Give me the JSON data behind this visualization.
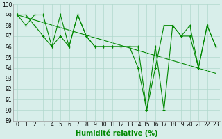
{
  "xlabel": "Humidité relative (%)",
  "x": [
    0,
    1,
    2,
    3,
    4,
    5,
    6,
    7,
    8,
    9,
    10,
    11,
    12,
    13,
    14,
    15,
    16,
    17,
    18,
    19,
    20,
    21,
    22,
    23
  ],
  "line1": [
    99,
    98,
    99,
    99,
    96,
    99,
    96,
    99,
    97,
    96,
    96,
    96,
    96,
    96,
    96,
    90,
    94,
    98,
    98,
    97,
    97,
    94,
    98,
    96
  ],
  "line2": [
    99,
    99,
    98,
    97,
    96,
    97,
    96,
    99,
    97,
    96,
    96,
    96,
    96,
    96,
    94,
    90,
    96,
    90,
    98,
    97,
    98,
    94,
    98,
    96
  ],
  "trend": [
    99,
    98.76,
    98.52,
    98.28,
    98.04,
    97.8,
    97.56,
    97.32,
    97.08,
    96.84,
    96.6,
    96.36,
    96.12,
    95.88,
    95.64,
    95.4,
    95.16,
    94.92,
    94.68,
    94.44,
    94.2,
    93.96,
    93.72,
    93.48
  ],
  "ylim": [
    89,
    100
  ],
  "yticks": [
    89,
    90,
    91,
    92,
    93,
    94,
    95,
    96,
    97,
    98,
    99,
    100
  ],
  "xticks": [
    0,
    1,
    2,
    3,
    4,
    5,
    6,
    7,
    8,
    9,
    10,
    11,
    12,
    13,
    14,
    15,
    16,
    17,
    18,
    19,
    20,
    21,
    22,
    23
  ],
  "line_color": "#008800",
  "bg_color": "#d8eeea",
  "grid_color": "#b0d8cc",
  "marker": "+",
  "marker_size": 3,
  "line_width": 0.8,
  "xlabel_fontsize": 7,
  "tick_fontsize": 5.5
}
